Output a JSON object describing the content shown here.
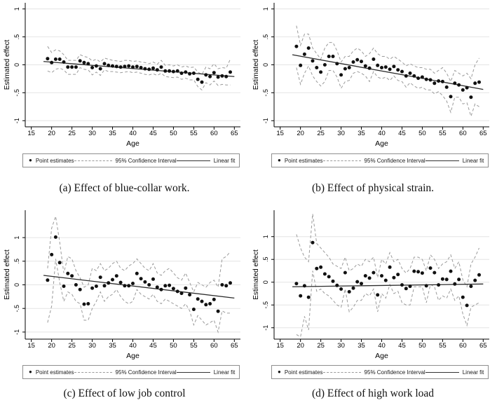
{
  "legend": {
    "marker": "●",
    "point_label": "Point estimates",
    "ci_label": "95% Confidence Interval",
    "fit_label": "Linear fit"
  },
  "colors": {
    "point": "#111111",
    "ci": "#9a9a9a",
    "fit": "#2b2b2b",
    "grid": "#e4e4e4",
    "axis": "#000000"
  },
  "chart_data": [
    {
      "type": "scatter",
      "caption": "(a) Effect of blue-collar work.",
      "ylabel": "Estimated effect",
      "xlabel": "Age",
      "xlim": [
        13.5,
        66.5
      ],
      "ylim": [
        -1.11,
        1.11
      ],
      "xticks": [
        15,
        20,
        25,
        30,
        35,
        40,
        45,
        50,
        55,
        60,
        65
      ],
      "yticks": [
        -1,
        -0.5,
        0,
        0.5,
        1
      ],
      "ytick_labels": [
        "-1",
        "-.5",
        "0",
        ".5",
        "1"
      ],
      "ages": [
        19,
        20,
        21,
        22,
        23,
        24,
        25,
        26,
        27,
        28,
        29,
        30,
        31,
        32,
        33,
        34,
        35,
        36,
        37,
        38,
        39,
        40,
        41,
        42,
        43,
        44,
        45,
        46,
        47,
        48,
        49,
        50,
        51,
        52,
        53,
        54,
        55,
        56,
        57,
        58,
        59,
        60,
        61,
        62,
        63,
        64
      ],
      "points": [
        0.11,
        0.04,
        0.1,
        0.1,
        0.05,
        -0.04,
        -0.04,
        -0.04,
        0.07,
        0.04,
        0.02,
        -0.05,
        -0.02,
        -0.07,
        0.02,
        -0.01,
        -0.02,
        -0.03,
        -0.04,
        -0.03,
        -0.02,
        -0.04,
        -0.03,
        -0.05,
        -0.07,
        -0.08,
        -0.06,
        -0.09,
        -0.04,
        -0.11,
        -0.11,
        -0.12,
        -0.11,
        -0.15,
        -0.13,
        -0.16,
        -0.15,
        -0.26,
        -0.31,
        -0.18,
        -0.21,
        -0.14,
        -0.22,
        -0.2,
        -0.21,
        -0.13
      ],
      "ci_upper": [
        0.33,
        0.22,
        0.27,
        0.25,
        0.18,
        0.08,
        0.08,
        0.08,
        0.18,
        0.15,
        0.13,
        0.07,
        0.1,
        0.05,
        0.12,
        0.1,
        0.08,
        0.07,
        0.06,
        0.08,
        0.08,
        0.06,
        0.07,
        0.05,
        0.04,
        0.02,
        0.05,
        0.01,
        0.08,
        -0.01,
        0.0,
        -0.02,
        0.0,
        -0.04,
        -0.02,
        -0.05,
        -0.04,
        -0.13,
        -0.17,
        -0.04,
        -0.07,
        0.02,
        -0.07,
        -0.05,
        -0.06,
        0.1
      ],
      "ci_lower": [
        -0.11,
        -0.14,
        -0.08,
        -0.06,
        -0.09,
        -0.17,
        -0.17,
        -0.17,
        -0.05,
        -0.08,
        -0.09,
        -0.18,
        -0.13,
        -0.19,
        -0.09,
        -0.12,
        -0.12,
        -0.13,
        -0.14,
        -0.13,
        -0.12,
        -0.14,
        -0.13,
        -0.15,
        -0.17,
        -0.18,
        -0.16,
        -0.19,
        -0.15,
        -0.21,
        -0.22,
        -0.23,
        -0.22,
        -0.26,
        -0.24,
        -0.27,
        -0.27,
        -0.39,
        -0.45,
        -0.32,
        -0.36,
        -0.29,
        -0.37,
        -0.35,
        -0.36,
        -0.36
      ],
      "fit": {
        "x": [
          18,
          65
        ],
        "y": [
          0.06,
          -0.21
        ]
      }
    },
    {
      "type": "scatter",
      "caption": "(b) Effect of physical strain.",
      "ylabel": "Estimated effect",
      "xlabel": "Age",
      "xlim": [
        13.5,
        66.5
      ],
      "ylim": [
        -1.11,
        1.11
      ],
      "xticks": [
        15,
        20,
        25,
        30,
        35,
        40,
        45,
        50,
        55,
        60,
        65
      ],
      "yticks": [
        -1,
        -0.5,
        0,
        0.5,
        1
      ],
      "ytick_labels": [
        "-1",
        "-.5",
        "0",
        ".5",
        "1"
      ],
      "ages": [
        19,
        20,
        21,
        22,
        23,
        24,
        25,
        26,
        27,
        28,
        29,
        30,
        31,
        32,
        33,
        34,
        35,
        36,
        37,
        38,
        39,
        40,
        41,
        42,
        43,
        44,
        45,
        46,
        47,
        48,
        49,
        50,
        51,
        52,
        53,
        54,
        55,
        56,
        57,
        58,
        59,
        60,
        61,
        62,
        63,
        64
      ],
      "points": [
        0.33,
        -0.01,
        0.19,
        0.3,
        0.07,
        -0.05,
        -0.13,
        0.0,
        0.15,
        0.15,
        0.02,
        -0.18,
        -0.07,
        -0.05,
        0.05,
        0.09,
        0.06,
        -0.02,
        -0.06,
        0.1,
        -0.01,
        -0.05,
        -0.04,
        -0.08,
        -0.03,
        -0.09,
        -0.12,
        -0.2,
        -0.15,
        -0.2,
        -0.24,
        -0.22,
        -0.26,
        -0.27,
        -0.33,
        -0.29,
        -0.3,
        -0.4,
        -0.57,
        -0.33,
        -0.36,
        -0.45,
        -0.41,
        -0.58,
        -0.33,
        -0.31
      ],
      "ci_upper": [
        0.7,
        0.35,
        0.55,
        0.55,
        0.3,
        0.2,
        0.1,
        0.3,
        0.4,
        0.4,
        0.25,
        0.05,
        0.15,
        0.15,
        0.25,
        0.3,
        0.25,
        0.15,
        0.2,
        0.3,
        0.2,
        0.15,
        0.15,
        0.1,
        0.15,
        0.1,
        0.05,
        -0.02,
        0.02,
        -0.02,
        -0.05,
        -0.05,
        -0.08,
        -0.08,
        -0.15,
        -0.1,
        -0.05,
        -0.15,
        -0.3,
        -0.1,
        -0.15,
        -0.2,
        -0.15,
        -0.25,
        0.0,
        0.12
      ],
      "ci_lower": [
        -0.05,
        -0.35,
        -0.15,
        -0.02,
        -0.2,
        -0.3,
        -0.38,
        -0.3,
        -0.1,
        -0.1,
        -0.22,
        -0.42,
        -0.3,
        -0.28,
        -0.15,
        -0.12,
        -0.15,
        -0.2,
        -0.3,
        -0.12,
        -0.22,
        -0.25,
        -0.22,
        -0.28,
        -0.2,
        -0.28,
        -0.3,
        -0.4,
        -0.32,
        -0.38,
        -0.42,
        -0.4,
        -0.45,
        -0.45,
        -0.52,
        -0.48,
        -0.55,
        -0.65,
        -0.85,
        -0.58,
        -0.58,
        -0.7,
        -0.68,
        -0.92,
        -0.7,
        -0.75
      ],
      "fit": {
        "x": [
          18,
          65
        ],
        "y": [
          0.18,
          -0.44
        ]
      }
    },
    {
      "type": "scatter",
      "caption": "(c) Effect of low job control",
      "ylabel": "Estimated effect",
      "xlabel": "Age",
      "xlim": [
        13.5,
        66.5
      ],
      "ylim": [
        -1.15,
        1.58
      ],
      "xticks": [
        15,
        20,
        25,
        30,
        35,
        40,
        45,
        50,
        55,
        60,
        65
      ],
      "yticks": [
        -1,
        -0.5,
        0,
        0.5,
        1
      ],
      "ytick_labels": [
        "-1",
        "-.5",
        "0",
        ".5",
        "1"
      ],
      "ages": [
        19,
        20,
        21,
        22,
        23,
        24,
        25,
        26,
        27,
        28,
        29,
        30,
        31,
        32,
        33,
        34,
        35,
        36,
        37,
        38,
        39,
        40,
        41,
        42,
        43,
        44,
        45,
        46,
        47,
        48,
        49,
        50,
        51,
        52,
        53,
        54,
        55,
        56,
        57,
        58,
        59,
        60,
        61,
        62,
        63,
        64
      ],
      "points": [
        0.1,
        0.64,
        1.01,
        0.47,
        -0.03,
        0.24,
        0.19,
        0.0,
        -0.1,
        -0.41,
        -0.4,
        -0.07,
        -0.03,
        0.16,
        -0.02,
        0.04,
        0.11,
        0.19,
        0.05,
        -0.02,
        -0.02,
        0.03,
        0.24,
        0.13,
        0.06,
        0.0,
        0.12,
        -0.05,
        -0.1,
        -0.02,
        -0.01,
        -0.08,
        -0.14,
        -0.18,
        -0.07,
        -0.21,
        -0.52,
        -0.3,
        -0.35,
        -0.42,
        -0.4,
        -0.31,
        -0.56,
        0.0,
        -0.02,
        0.04
      ],
      "ci_upper": [
        0.35,
        1.2,
        1.45,
        0.9,
        0.25,
        0.6,
        0.55,
        0.3,
        0.15,
        -0.05,
        0.0,
        0.35,
        0.3,
        0.45,
        0.3,
        0.35,
        0.45,
        0.5,
        0.35,
        0.3,
        0.4,
        0.45,
        0.55,
        0.45,
        0.35,
        0.3,
        0.45,
        0.25,
        0.2,
        0.3,
        0.35,
        0.25,
        0.15,
        0.1,
        0.25,
        0.05,
        -0.15,
        0.05,
        0.0,
        -0.05,
        0.05,
        0.1,
        -0.05,
        0.55,
        0.6,
        0.7
      ],
      "ci_lower": [
        -0.8,
        -0.45,
        0.55,
        0.05,
        -0.35,
        -0.15,
        -0.2,
        -0.35,
        -0.4,
        -0.75,
        -0.75,
        -0.5,
        -0.35,
        -0.15,
        -0.35,
        -0.25,
        -0.2,
        -0.1,
        -0.25,
        -0.35,
        -0.4,
        -0.35,
        -0.1,
        -0.2,
        -0.25,
        -0.3,
        -0.2,
        -0.35,
        -0.4,
        -0.3,
        -0.35,
        -0.4,
        -0.45,
        -0.5,
        -0.4,
        -0.55,
        -0.85,
        -0.65,
        -0.75,
        -0.85,
        -0.8,
        -0.75,
        -1.0,
        -0.55,
        -0.6,
        -0.6
      ],
      "fit": {
        "x": [
          18,
          65
        ],
        "y": [
          0.2,
          -0.28
        ]
      }
    },
    {
      "type": "scatter",
      "caption": "(d) Effect of high work load",
      "ylabel": "Estimated effect",
      "xlabel": "Age",
      "xlim": [
        13.5,
        66.5
      ],
      "ylim": [
        -1.25,
        1.58
      ],
      "xticks": [
        15,
        20,
        25,
        30,
        35,
        40,
        45,
        50,
        55,
        60,
        65
      ],
      "yticks": [
        -1,
        -0.5,
        0,
        0.5,
        1
      ],
      "ytick_labels": [
        "-1",
        "-.5",
        "0",
        ".5",
        "1"
      ],
      "ages": [
        19,
        20,
        21,
        22,
        23,
        24,
        25,
        26,
        27,
        28,
        29,
        30,
        31,
        32,
        33,
        34,
        35,
        36,
        37,
        38,
        39,
        40,
        41,
        42,
        43,
        44,
        45,
        46,
        47,
        48,
        49,
        50,
        51,
        52,
        53,
        54,
        55,
        56,
        57,
        58,
        59,
        60,
        61,
        62,
        63,
        64
      ],
      "points": [
        -0.03,
        -0.3,
        -0.08,
        -0.33,
        0.87,
        0.3,
        0.33,
        0.18,
        0.12,
        0.02,
        -0.07,
        -0.15,
        0.21,
        -0.21,
        -0.13,
        0.01,
        -0.03,
        0.14,
        0.09,
        0.21,
        -0.28,
        0.14,
        0.04,
        0.33,
        0.1,
        0.17,
        -0.06,
        -0.14,
        -0.09,
        0.24,
        0.23,
        0.2,
        -0.08,
        0.31,
        0.21,
        -0.06,
        0.07,
        0.06,
        0.24,
        -0.04,
        0.06,
        -0.33,
        -0.51,
        -0.09,
        0.04,
        0.16
      ],
      "ci_upper": [
        1.05,
        0.75,
        0.55,
        0.45,
        1.5,
        0.85,
        0.75,
        0.65,
        0.55,
        0.4,
        0.35,
        0.3,
        0.55,
        0.25,
        0.3,
        0.4,
        0.35,
        0.5,
        0.45,
        0.55,
        0.1,
        0.5,
        0.4,
        0.65,
        0.45,
        0.5,
        0.3,
        0.2,
        0.3,
        0.55,
        0.55,
        0.5,
        0.25,
        0.6,
        0.5,
        0.3,
        0.4,
        0.45,
        0.6,
        0.3,
        0.45,
        0.05,
        -0.1,
        0.4,
        0.55,
        0.75
      ],
      "ci_lower": [
        -1.15,
        -1.2,
        -0.75,
        -1.05,
        0.25,
        -0.2,
        -0.15,
        -0.25,
        -0.3,
        -0.4,
        -0.5,
        -0.55,
        -0.15,
        -0.65,
        -0.55,
        -0.4,
        -0.4,
        -0.25,
        -0.3,
        -0.15,
        -0.65,
        -0.25,
        -0.35,
        -0.05,
        -0.25,
        -0.2,
        -0.45,
        -0.5,
        -0.5,
        -0.1,
        -0.1,
        -0.1,
        -0.45,
        -0.05,
        -0.1,
        -0.4,
        -0.3,
        -0.35,
        -0.15,
        -0.4,
        -0.3,
        -0.7,
        -0.95,
        -0.55,
        -0.5,
        -0.45
      ],
      "fit": {
        "x": [
          18,
          65
        ],
        "y": [
          -0.1,
          -0.04
        ]
      }
    }
  ]
}
